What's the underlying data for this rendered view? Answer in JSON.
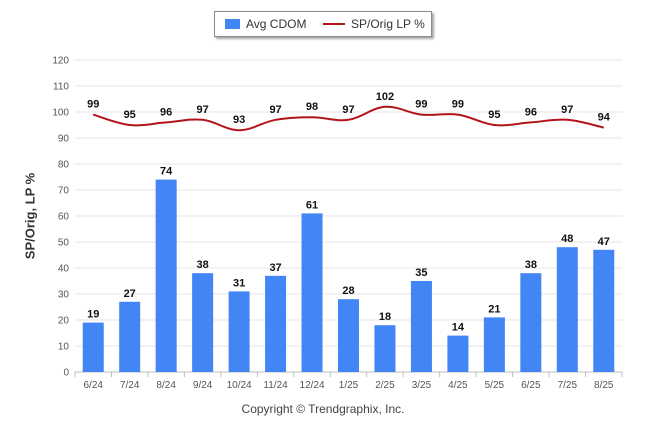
{
  "legend": {
    "bar_label": "Avg CDOM",
    "line_label": "SP/Orig LP %"
  },
  "credit": "Copyright © Trendgraphix, Inc.",
  "chart_data": {
    "type": "bar",
    "categories": [
      "6/24",
      "7/24",
      "8/24",
      "9/24",
      "10/24",
      "11/24",
      "12/24",
      "1/25",
      "2/25",
      "3/25",
      "4/25",
      "5/25",
      "6/25",
      "7/25",
      "8/25"
    ],
    "series": [
      {
        "name": "Avg CDOM",
        "type": "bar",
        "color": "#4285f4",
        "values": [
          19,
          27,
          74,
          38,
          31,
          37,
          61,
          28,
          18,
          35,
          14,
          21,
          38,
          48,
          47
        ]
      },
      {
        "name": "SP/Orig LP %",
        "type": "line",
        "color": "#b3141a",
        "values": [
          99,
          95,
          96,
          97,
          93,
          97,
          98,
          97,
          102,
          99,
          99,
          95,
          96,
          97,
          94
        ]
      }
    ],
    "ylabel": "SP/Orig, LP %",
    "ylim": [
      0,
      120
    ],
    "yticks": [
      0,
      10,
      20,
      30,
      40,
      50,
      60,
      70,
      80,
      90,
      100,
      110,
      120
    ],
    "grid": true,
    "legend_position": "top-center"
  }
}
